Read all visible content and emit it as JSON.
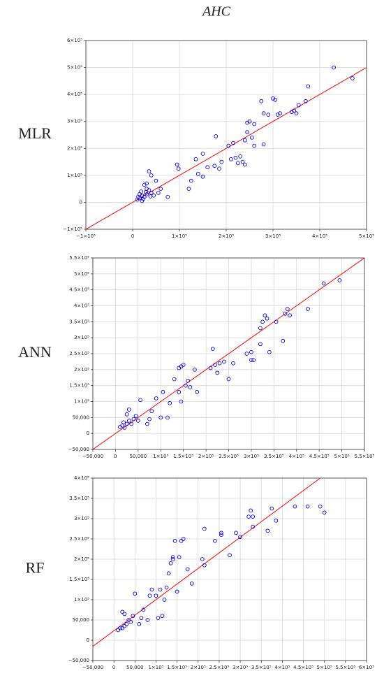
{
  "title": "AHC",
  "chart_data": [
    {
      "type": "scatter",
      "ylabel": "MLR",
      "color": "#0000ff",
      "grid": true,
      "xlim": [
        -100000,
        500000
      ],
      "ylim": [
        -100000,
        600000
      ],
      "xticks": [
        {
          "value": -100000,
          "label": "−1×10⁵"
        },
        0,
        {
          "value": 100000,
          "label": "1×10⁵"
        },
        {
          "value": 200000,
          "label": "2×10⁵"
        },
        {
          "value": 300000,
          "label": "3×10⁵"
        },
        {
          "value": 400000,
          "label": "4×10⁵"
        },
        {
          "value": 500000,
          "label": "5×10⁵"
        }
      ],
      "yticks": [
        {
          "value": -100000,
          "label": "−1×10⁵"
        },
        0,
        {
          "value": 100000,
          "label": "1×10⁵"
        },
        {
          "value": 200000,
          "label": "2×10⁵"
        },
        {
          "value": 300000,
          "label": "3×10⁵"
        },
        {
          "value": 400000,
          "label": "4×10⁵"
        },
        {
          "value": 500000,
          "label": "5×10⁵"
        },
        {
          "value": 600000,
          "label": "6×10⁵"
        }
      ],
      "fit": {
        "color": "#ff0000",
        "x": [
          -100000,
          500000
        ],
        "y": [
          -100000,
          500000
        ]
      },
      "x": [
        15000,
        20000,
        25000,
        10000,
        30000,
        18000,
        35000,
        25000,
        40000,
        30000,
        15000,
        22000,
        45000,
        35000,
        40000,
        30000,
        50000,
        55000,
        60000,
        75000,
        20000,
        12000,
        38000,
        28000,
        95000,
        98000,
        120000,
        125000,
        135000,
        140000,
        150000,
        150000,
        160000,
        175000,
        178000,
        185000,
        190000,
        205000,
        210000,
        215000,
        220000,
        225000,
        230000,
        235000,
        240000,
        240000,
        245000,
        245000,
        250000,
        255000,
        260000,
        275000,
        280000,
        280000,
        300000,
        305000,
        310000,
        315000,
        340000,
        345000,
        350000,
        355000,
        370000,
        375000,
        430000,
        470000,
        290000,
        260000
      ],
      "values": [
        15000,
        25000,
        20000,
        10000,
        30000,
        40000,
        45000,
        65000,
        35000,
        50000,
        30000,
        12000,
        25000,
        115000,
        100000,
        70000,
        80000,
        35000,
        50000,
        20000,
        5000,
        20000,
        22000,
        38000,
        140000,
        125000,
        50000,
        80000,
        160000,
        105000,
        180000,
        95000,
        130000,
        135000,
        245000,
        125000,
        150000,
        210000,
        160000,
        220000,
        165000,
        145000,
        170000,
        150000,
        140000,
        230000,
        260000,
        295000,
        300000,
        240000,
        290000,
        375000,
        330000,
        215000,
        385000,
        380000,
        325000,
        330000,
        335000,
        340000,
        330000,
        360000,
        375000,
        430000,
        500000,
        460000,
        325000,
        210000
      ]
    },
    {
      "type": "scatter",
      "ylabel": "ANN",
      "color": "#0000ff",
      "grid": true,
      "xlim": [
        -50000,
        550000
      ],
      "ylim": [
        -50000,
        550000
      ],
      "xticks": [
        {
          "value": -50000,
          "label": "−50,000"
        },
        0,
        {
          "value": 50000,
          "label": "50,000"
        },
        {
          "value": 100000,
          "label": "1×10⁵"
        },
        {
          "value": 150000,
          "label": "1.5×10⁵"
        },
        {
          "value": 200000,
          "label": "2×10⁵"
        },
        {
          "value": 250000,
          "label": "2.5×10⁵"
        },
        {
          "value": 300000,
          "label": "3×10⁵"
        },
        {
          "value": 350000,
          "label": "3.5×10⁵"
        },
        {
          "value": 400000,
          "label": "4×10⁵"
        },
        {
          "value": 450000,
          "label": "4.5×10⁵"
        },
        {
          "value": 500000,
          "label": "5×10⁵"
        },
        {
          "value": 550000,
          "label": "5.5×10⁵"
        }
      ],
      "yticks": [
        {
          "value": -50000,
          "label": "−50,000"
        },
        0,
        {
          "value": 50000,
          "label": "50,000"
        },
        {
          "value": 100000,
          "label": "1×10⁵"
        },
        {
          "value": 150000,
          "label": "1.5×10⁵"
        },
        {
          "value": 200000,
          "label": "2×10⁵"
        },
        {
          "value": 250000,
          "label": "2.5×10⁵"
        },
        {
          "value": 300000,
          "label": "3×10⁵"
        },
        {
          "value": 350000,
          "label": "3.5×10⁵"
        },
        {
          "value": 400000,
          "label": "4×10⁵"
        },
        {
          "value": 450000,
          "label": "4.5×10⁵"
        },
        {
          "value": 500000,
          "label": "5×10⁵"
        },
        {
          "value": 550000,
          "label": "5.5×10⁵"
        }
      ],
      "fit": {
        "color": "#ff0000",
        "x": [
          -50000,
          550000
        ],
        "y": [
          -50000,
          550000
        ]
      },
      "x": [
        10000,
        15000,
        20000,
        25000,
        18000,
        30000,
        35000,
        40000,
        25000,
        30000,
        45000,
        50000,
        55000,
        70000,
        75000,
        80000,
        90000,
        100000,
        105000,
        115000,
        120000,
        130000,
        140000,
        140000,
        145000,
        150000,
        145000,
        155000,
        160000,
        165000,
        175000,
        180000,
        210000,
        215000,
        220000,
        225000,
        230000,
        240000,
        250000,
        260000,
        290000,
        300000,
        300000,
        305000,
        320000,
        320000,
        325000,
        330000,
        335000,
        340000,
        355000,
        370000,
        375000,
        380000,
        385000,
        425000,
        460000,
        495000
      ],
      "values": [
        20000,
        25000,
        18000,
        30000,
        35000,
        40000,
        30000,
        45000,
        60000,
        75000,
        55000,
        40000,
        105000,
        30000,
        45000,
        70000,
        110000,
        50000,
        130000,
        50000,
        95000,
        170000,
        130000,
        205000,
        210000,
        215000,
        100000,
        150000,
        165000,
        145000,
        200000,
        130000,
        205000,
        265000,
        215000,
        190000,
        220000,
        225000,
        170000,
        220000,
        250000,
        230000,
        255000,
        230000,
        280000,
        330000,
        350000,
        370000,
        360000,
        255000,
        350000,
        290000,
        375000,
        390000,
        370000,
        390000,
        470000,
        480000
      ]
    },
    {
      "type": "scatter",
      "ylabel": "RF",
      "color": "#0000ff",
      "grid": true,
      "xlim": [
        -50000,
        600000
      ],
      "ylim": [
        -50000,
        400000
      ],
      "xticks": [
        {
          "value": -50000,
          "label": "−50,000"
        },
        0,
        {
          "value": 50000,
          "label": "50,000"
        },
        {
          "value": 100000,
          "label": "1×10⁵"
        },
        {
          "value": 150000,
          "label": "1.5×10⁵"
        },
        {
          "value": 200000,
          "label": "2×10⁵"
        },
        {
          "value": 250000,
          "label": "2.5×10⁵"
        },
        {
          "value": 300000,
          "label": "3×10⁵"
        },
        {
          "value": 350000,
          "label": "3.5×10⁵"
        },
        {
          "value": 400000,
          "label": "4×10⁵"
        },
        {
          "value": 450000,
          "label": "4.5×10⁵"
        },
        {
          "value": 500000,
          "label": "5×10⁵"
        },
        {
          "value": 550000,
          "label": "5.5×10⁵"
        },
        {
          "value": 600000,
          "label": "6×10⁵"
        }
      ],
      "yticks": [
        {
          "value": -50000,
          "label": "−50,000"
        },
        0,
        {
          "value": 50000,
          "label": "50,000"
        },
        {
          "value": 100000,
          "label": "1×10⁵"
        },
        {
          "value": 150000,
          "label": "1.5×10⁵"
        },
        {
          "value": 200000,
          "label": "2×10⁵"
        },
        {
          "value": 250000,
          "label": "2.5×10⁵"
        },
        {
          "value": 300000,
          "label": "3×10⁵"
        },
        {
          "value": 350000,
          "label": "3.5×10⁵"
        },
        {
          "value": 400000,
          "label": "4×10⁵"
        }
      ],
      "fit": {
        "color": "#ff0000",
        "x": [
          -50000,
          490000
        ],
        "y": [
          -15000,
          400000
        ]
      },
      "x": [
        10000,
        15000,
        20000,
        25000,
        30000,
        20000,
        25000,
        35000,
        40000,
        45000,
        50000,
        60000,
        65000,
        70000,
        80000,
        85000,
        90000,
        100000,
        105000,
        110000,
        115000,
        120000,
        125000,
        130000,
        135000,
        140000,
        140000,
        145000,
        150000,
        155000,
        160000,
        165000,
        175000,
        185000,
        210000,
        215000,
        215000,
        240000,
        255000,
        255000,
        275000,
        290000,
        300000,
        320000,
        325000,
        330000,
        330000,
        365000,
        375000,
        385000,
        430000,
        460000,
        490000,
        500000
      ],
      "values": [
        25000,
        30000,
        30000,
        35000,
        40000,
        70000,
        65000,
        50000,
        45000,
        60000,
        115000,
        40000,
        55000,
        75000,
        50000,
        110000,
        125000,
        110000,
        55000,
        125000,
        60000,
        100000,
        130000,
        165000,
        190000,
        205000,
        200000,
        245000,
        120000,
        205000,
        245000,
        250000,
        175000,
        140000,
        200000,
        275000,
        185000,
        245000,
        260000,
        265000,
        210000,
        265000,
        255000,
        305000,
        320000,
        305000,
        280000,
        270000,
        325000,
        295000,
        330000,
        330000,
        330000,
        315000
      ]
    }
  ]
}
